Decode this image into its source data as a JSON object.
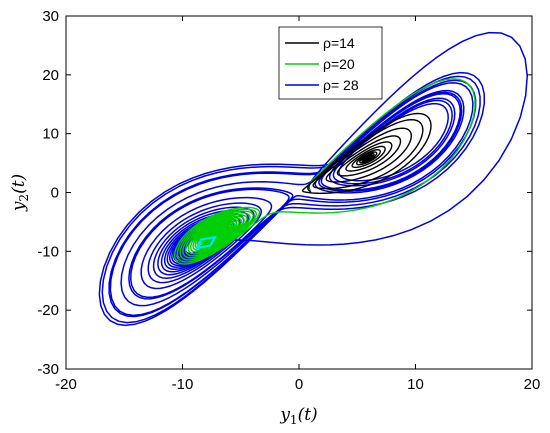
{
  "chart_data": {
    "type": "line",
    "title": "",
    "xlabel": "y1(t)",
    "ylabel": "y2(t)",
    "xlim": [
      -20,
      20
    ],
    "ylim": [
      -30,
      30
    ],
    "x_ticks": [
      -20,
      -10,
      0,
      10,
      20
    ],
    "y_ticks": [
      -30,
      -20,
      -10,
      0,
      10,
      20,
      30
    ],
    "grid": false,
    "legend_position": "top-center",
    "series": [
      {
        "name": "ρ=14",
        "color": "#000000",
        "description": "spiral converging to the fixed point near (6, 6)",
        "fixed_point": [
          6,
          6
        ],
        "x": [
          0.9,
          6,
          12.5,
          6,
          0.5,
          6,
          11.7,
          6,
          1.3,
          6,
          10.9,
          6,
          2.1,
          6,
          10.1,
          6,
          3.0,
          6,
          9.1,
          6,
          3.9,
          6,
          8.2,
          6,
          4.8,
          6,
          7.3,
          6,
          5.5,
          6
        ],
        "y": [
          0.3,
          -3.2,
          7.0,
          14.8,
          2.4,
          -2.5,
          7.0,
          14.0,
          2.9,
          -1.5,
          7.0,
          13.2,
          3.4,
          -0.4,
          7.0,
          12.0,
          4.1,
          0.9,
          7.0,
          10.7,
          4.8,
          2.2,
          6.8,
          9.4,
          5.3,
          3.7,
          6.5,
          8.0,
          5.7,
          6
        ]
      },
      {
        "name": "ρ=20",
        "color": "#00d000",
        "description": "long transient orbit converging to the fixed point near (-8, -8)",
        "fixed_point": [
          -8,
          -8
        ],
        "x": [
          1.0,
          9,
          14,
          11,
          6,
          -1,
          -5,
          -9,
          -13,
          -14,
          -11,
          -7,
          -5,
          -4,
          -6,
          -9,
          -11,
          -10,
          -8,
          -6,
          -7,
          -9,
          -8
        ],
        "y": [
          0.2,
          6,
          17,
          5,
          -3,
          -3,
          -3.3,
          -3.5,
          -7,
          -13,
          -17,
          -14,
          -9,
          -6,
          -3.5,
          -4,
          -8,
          -12,
          -11,
          -8,
          -6,
          -8,
          -8
        ]
      },
      {
        "name": "ρ= 28",
        "color": "#0000e0",
        "description": "chaotic butterfly attractor with lobes around (-8,-8) and (8,8)",
        "lobes": [
          {
            "center": [
              -8,
              -8
            ],
            "x_range": [
              -15.5,
              -2.5
            ],
            "y_range": [
              -21.5,
              -3
            ]
          },
          {
            "center": [
              8,
              8
            ],
            "x_range": [
              1,
              19.5
            ],
            "y_range": [
              -9,
              27
            ]
          }
        ],
        "x": [
          0.5,
          -3,
          -8,
          -13,
          -15.5,
          -14,
          -9,
          -4,
          -2.5,
          -6,
          -11,
          -13,
          -9,
          -5,
          -2.5,
          3,
          9,
          15,
          19.5,
          16,
          8,
          1,
          1.5,
          8,
          14,
          17,
          13,
          5,
          1,
          -3,
          -7
        ],
        "y": [
          -1,
          -3,
          -4.5,
          -8,
          -15,
          -21,
          -20,
          -14,
          -7,
          -4,
          -6,
          -12,
          -16,
          -13,
          -8,
          10,
          22,
          27,
          22,
          8,
          -8,
          -9,
          -1,
          5,
          18,
          24,
          16,
          2,
          -2,
          -4.5,
          -6.5
        ]
      },
      {
        "name": "",
        "color": "#00e0ff",
        "description": "small cyan loop at the left fixed point",
        "x": [
          -8.8,
          -7.6,
          -7.2,
          -8.4
        ],
        "y": [
          -9.5,
          -9.0,
          -7.6,
          -8.0
        ]
      }
    ]
  },
  "legend": {
    "items": [
      {
        "label": "ρ=14",
        "color": "#000000"
      },
      {
        "label": "ρ=20",
        "color": "#00d000"
      },
      {
        "label": "ρ= 28",
        "color": "#0000e0"
      }
    ]
  }
}
